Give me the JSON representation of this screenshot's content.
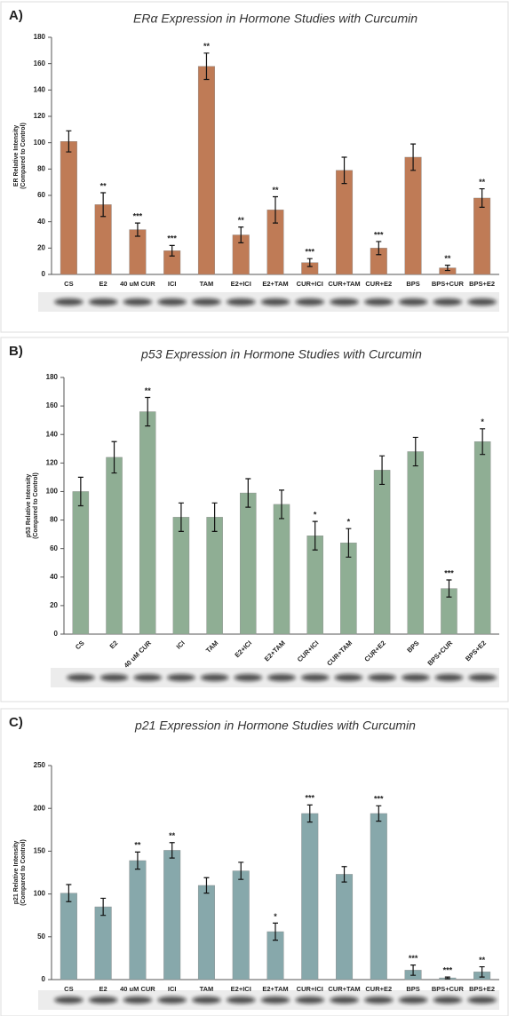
{
  "chart_data": [
    {
      "type": "bar",
      "panel_label": "A)",
      "title": "ERα Expression in Hormone Studies with Curcumin",
      "y_label": [
        "ER Relative Intensity",
        "(Compared to Control)"
      ],
      "categories": [
        "CS",
        "E2",
        "40 uM CUR",
        "ICI",
        "TAM",
        "E2+ICI",
        "E2+TAM",
        "CUR+ICI",
        "CUR+TAM",
        "CUR+E2",
        "BPS",
        "BPS+CUR",
        "BPS+E2"
      ],
      "values": [
        101,
        53,
        34,
        18,
        158,
        30,
        49,
        9,
        79,
        20,
        89,
        5,
        58
      ],
      "errors": [
        8,
        9,
        5,
        4,
        10,
        6,
        10,
        3,
        10,
        5,
        10,
        2,
        7
      ],
      "annotations": [
        null,
        "**",
        "***",
        "***",
        "**",
        "**",
        "**",
        "***",
        null,
        "***",
        null,
        "**",
        "**"
      ],
      "color": "#bf7b56",
      "ylim": [
        0,
        180
      ],
      "yticks": [
        0,
        20,
        40,
        60,
        80,
        100,
        120,
        140,
        160,
        180
      ]
    },
    {
      "type": "bar",
      "panel_label": "B)",
      "title": "p53 Expression in Hormone Studies with Curcumin",
      "y_label": [
        "p53 Relative Intensity",
        "(Compared to Control)"
      ],
      "categories": [
        "CS",
        "E2",
        "40 uM CUR",
        "ICI",
        "TAM",
        "E2+ICI",
        "E2+TAM",
        "CUR+ICI",
        "CUR+TAM",
        "CUR+E2",
        "BPS",
        "BPS+CUR",
        "BPS+E2"
      ],
      "values": [
        100,
        124,
        156,
        82,
        82,
        99,
        91,
        69,
        64,
        115,
        128,
        32,
        135
      ],
      "errors": [
        10,
        11,
        10,
        10,
        10,
        10,
        10,
        10,
        10,
        10,
        10,
        6,
        9
      ],
      "annotations": [
        null,
        null,
        "**",
        null,
        null,
        null,
        null,
        "*",
        "*",
        null,
        null,
        "***",
        "*"
      ],
      "color": "#8fae94",
      "ylim": [
        0,
        180
      ],
      "yticks": [
        0,
        20,
        40,
        60,
        80,
        100,
        120,
        140,
        160,
        180
      ]
    },
    {
      "type": "bar",
      "panel_label": "C)",
      "title": "p21 Expression in Hormone Studies with Curcumin",
      "y_label": [
        "p21 Relative Intensity",
        "(Compared to Control)"
      ],
      "categories": [
        "CS",
        "E2",
        "40 uM CUR",
        "ICI",
        "TAM",
        "E2+ICI",
        "E2+TAM",
        "CUR+ICI",
        "CUR+TAM",
        "CUR+E2",
        "BPS",
        "BPS+CUR",
        "BPS+E2"
      ],
      "values": [
        101,
        85,
        139,
        151,
        110,
        127,
        56,
        194,
        123,
        194,
        11,
        2,
        9
      ],
      "errors": [
        10,
        10,
        10,
        9,
        9,
        10,
        10,
        10,
        9,
        9,
        6,
        1,
        6
      ],
      "annotations": [
        null,
        null,
        "**",
        "**",
        null,
        null,
        "*",
        "***",
        null,
        "***",
        "***",
        "***",
        "**"
      ],
      "color": "#87a8ab",
      "ylim": [
        0,
        250
      ],
      "yticks": [
        0,
        50,
        100,
        150,
        200,
        250
      ]
    }
  ]
}
